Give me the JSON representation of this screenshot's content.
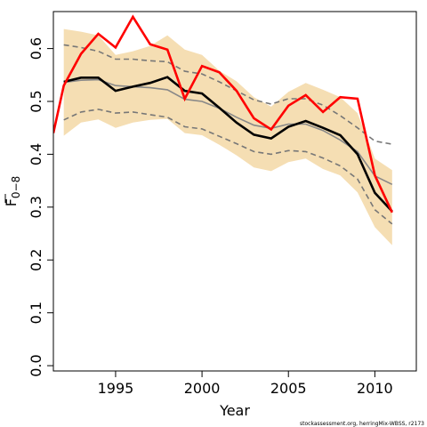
{
  "chart_data": {
    "type": "line",
    "xlabel": "Year",
    "ylabel": "F",
    "ylabel_subscript": "0−8",
    "xlim": [
      1991.4,
      2012.4
    ],
    "ylim": [
      -0.01,
      0.67
    ],
    "xticks": [
      1995,
      2000,
      2005,
      2010
    ],
    "yticks": [
      0.0,
      0.1,
      0.2,
      0.3,
      0.4,
      0.5,
      0.6
    ],
    "ytick_labels": [
      "0.0",
      "0.1",
      "0.2",
      "0.3",
      "0.4",
      "0.5",
      "0.6"
    ],
    "x": [
      1992,
      1993,
      1994,
      1995,
      1996,
      1997,
      1998,
      1999,
      2000,
      2001,
      2002,
      2003,
      2004,
      2005,
      2006,
      2007,
      2008,
      2009,
      2010,
      2011
    ],
    "series": [
      {
        "role": "band",
        "color": "#f5deb3",
        "upper": [
          0.637,
          0.632,
          0.625,
          0.588,
          0.595,
          0.605,
          0.625,
          0.598,
          0.588,
          0.558,
          0.538,
          0.508,
          0.49,
          0.518,
          0.535,
          0.522,
          0.508,
          0.478,
          0.392,
          0.37
        ],
        "lower": [
          0.435,
          0.46,
          0.466,
          0.45,
          0.46,
          0.465,
          0.467,
          0.44,
          0.436,
          0.418,
          0.398,
          0.375,
          0.368,
          0.385,
          0.392,
          0.372,
          0.36,
          0.328,
          0.262,
          0.228
        ]
      },
      {
        "role": "dashed-upper",
        "color": "#777777",
        "values": [
          0.607,
          0.602,
          0.595,
          0.58,
          0.58,
          0.577,
          0.575,
          0.557,
          0.552,
          0.537,
          0.52,
          0.503,
          0.495,
          0.505,
          0.505,
          0.493,
          0.473,
          0.45,
          0.425,
          0.419
        ]
      },
      {
        "role": "dashed-lower",
        "color": "#777777",
        "values": [
          0.465,
          0.48,
          0.485,
          0.478,
          0.48,
          0.475,
          0.47,
          0.452,
          0.448,
          0.434,
          0.42,
          0.405,
          0.4,
          0.407,
          0.405,
          0.393,
          0.378,
          0.353,
          0.295,
          0.268
        ]
      },
      {
        "role": "median",
        "color": "#888888",
        "values": [
          0.536,
          0.54,
          0.541,
          0.53,
          0.528,
          0.526,
          0.522,
          0.504,
          0.5,
          0.487,
          0.47,
          0.455,
          0.449,
          0.457,
          0.457,
          0.445,
          0.427,
          0.405,
          0.359,
          0.343
        ]
      },
      {
        "role": "estimate",
        "color": "#000000",
        "values": [
          0.537,
          0.545,
          0.545,
          0.52,
          0.528,
          0.535,
          0.546,
          0.52,
          0.515,
          0.488,
          0.46,
          0.437,
          0.43,
          0.452,
          0.463,
          0.45,
          0.436,
          0.4,
          0.327,
          0.292
        ]
      },
      {
        "role": "comparison",
        "color": "#ff0000",
        "values": [
          0.53,
          0.59,
          0.628,
          0.602,
          0.66,
          0.608,
          0.598,
          0.505,
          0.567,
          0.555,
          0.52,
          0.468,
          0.447,
          0.492,
          0.512,
          0.48,
          0.508,
          0.505,
          0.36,
          0.29
        ]
      }
    ],
    "red_start": {
      "x": 1991.4,
      "y": 0.44
    },
    "grid": false,
    "legend": "none"
  },
  "footer": {
    "credit": "stockassessment.org, herringMix-WBSS, r2173"
  }
}
